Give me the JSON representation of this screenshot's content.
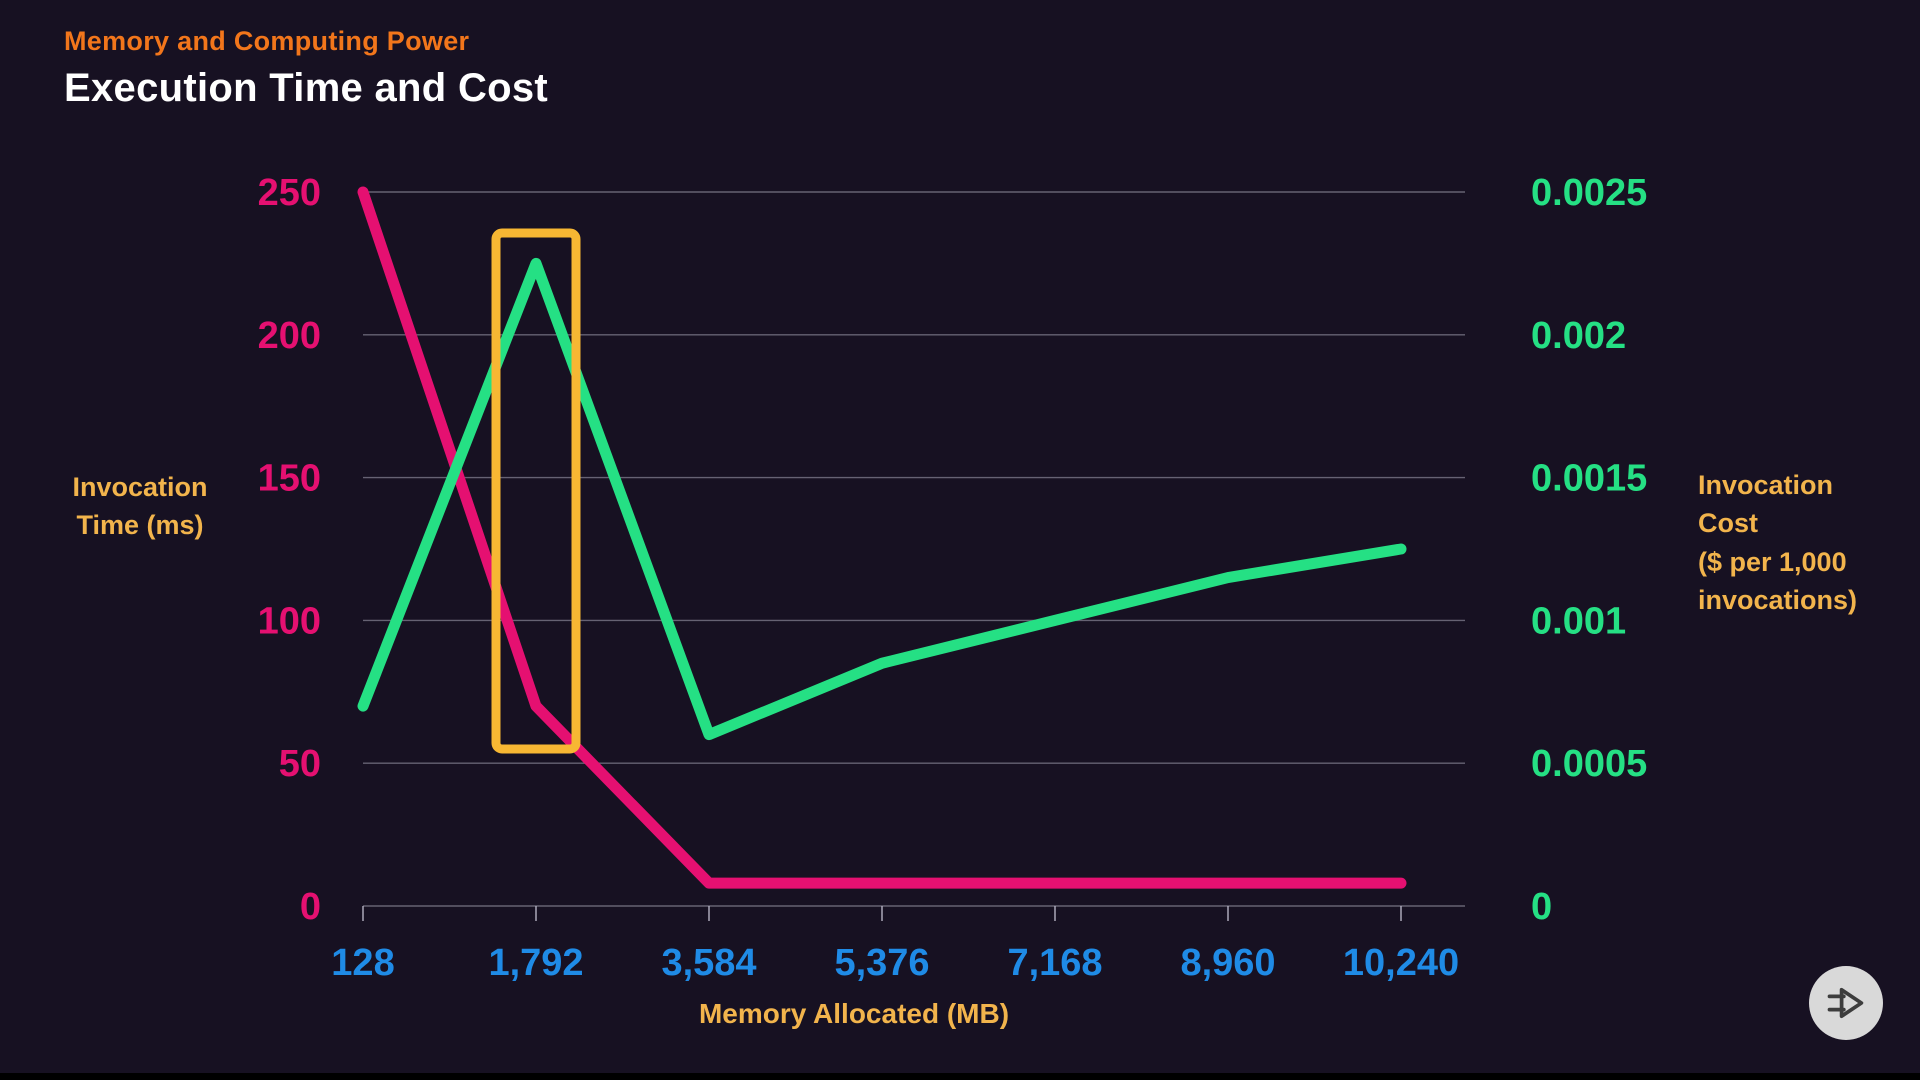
{
  "header": {
    "eyebrow": "Memory and Computing Power",
    "title": "Execution Time and Cost"
  },
  "colors": {
    "background": "#171122",
    "eyebrow_orange": "#f2761b",
    "title_white": "#ffffff",
    "time_pink": "#e51071",
    "cost_green": "#25e084",
    "memory_blue": "#1f8be6",
    "axis_gold": "#f2b44c",
    "highlight_gold": "#f7b733",
    "grid_gray": "#b5b2c4",
    "play_button_bg": "#d9d9d9",
    "play_icon_dark": "#3d3d3d"
  },
  "chart_data": {
    "type": "line",
    "title": "Execution Time and Cost",
    "grid": true,
    "legend": "none",
    "x": {
      "label": "Memory Allocated (MB)",
      "categories": [
        128,
        1792,
        3584,
        5376,
        7168,
        8960,
        10240
      ],
      "tick_labels": [
        "128",
        "1,792",
        "3,584",
        "5,376",
        "7,168",
        "8,960",
        "10,240"
      ],
      "color": "#1f8be6"
    },
    "y_left": {
      "label": "Invocation\nTime (ms)",
      "min": 0,
      "max": 250,
      "ticks": [
        250,
        200,
        150,
        100,
        50,
        0
      ],
      "color": "#e51071"
    },
    "y_right": {
      "label": "Invocation\nCost\n($ per 1,000\ninvocations)",
      "min": 0,
      "max": 0.0025,
      "ticks": [
        "0.0025",
        "0.002",
        "0.0015",
        "0.001",
        "0.0005",
        "0"
      ],
      "color": "#25e084"
    },
    "series": [
      {
        "name": "Invocation Time (ms)",
        "axis": "left",
        "color": "#e51071",
        "values": [
          250,
          70,
          8,
          8,
          8,
          8,
          8
        ]
      },
      {
        "name": "Invocation Cost ($ per 1,000 invocations)",
        "axis": "right",
        "color": "#25e084",
        "values": [
          0.0007,
          0.00225,
          0.0006,
          0.00085,
          0.001,
          0.00115,
          0.00125
        ]
      }
    ],
    "highlight": {
      "category": "1,792",
      "category_index": 1,
      "color": "#f7b733"
    }
  },
  "controls": {
    "play_button_icon": "play-forward-icon"
  }
}
